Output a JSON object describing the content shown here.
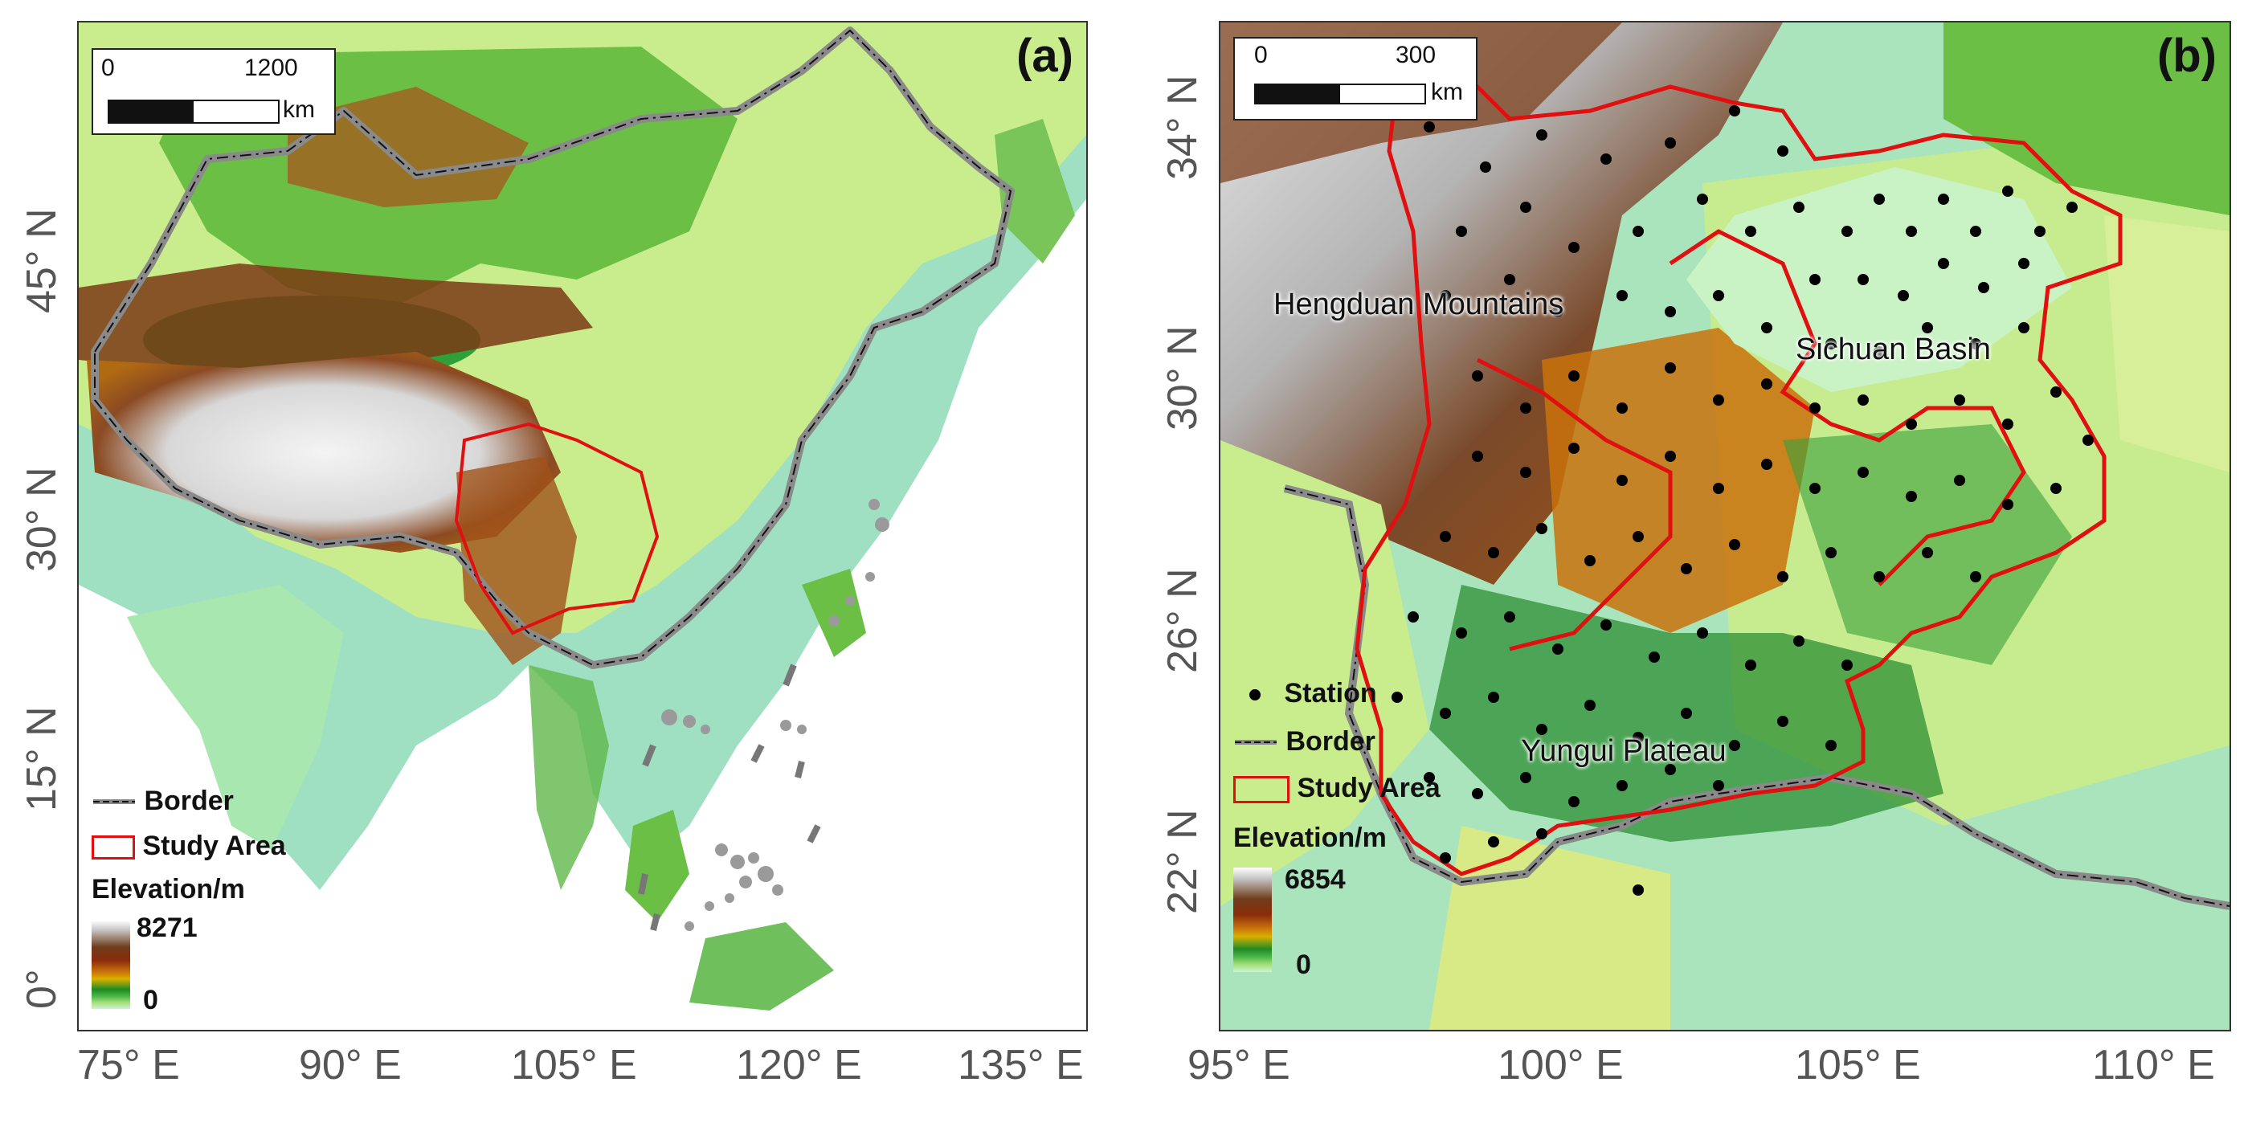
{
  "panel_a": {
    "label": "(a)",
    "scalebar": {
      "start": "0",
      "end": "1200",
      "unit": "km"
    },
    "x_ticks": [
      "75° E",
      "90° E",
      "105° E",
      "120° E",
      "135° E"
    ],
    "y_ticks": [
      "45° N",
      "30° N",
      "15° N",
      "0°"
    ],
    "legend": {
      "border": "Border",
      "study_area": "Study Area",
      "elevation_title": "Elevation/m",
      "elev_max": "8271",
      "elev_min": "0"
    }
  },
  "panel_b": {
    "label": "(b)",
    "scalebar": {
      "start": "0",
      "end": "300",
      "unit": "km"
    },
    "x_ticks": [
      "95° E",
      "100° E",
      "105° E",
      "110° E"
    ],
    "y_ticks": [
      "34° N",
      "30° N",
      "26° N",
      "22° N"
    ],
    "regions": {
      "hengduan": "Hengduan Mountains",
      "sichuan": "Sichuan Basin",
      "yungui": "Yungui Plateau"
    },
    "legend": {
      "station": "Station",
      "border": "Border",
      "study_area": "Study Area",
      "elevation_title": "Elevation/m",
      "elev_max": "6854",
      "elev_min": "0"
    }
  },
  "colors": {
    "study_area": "#e01010",
    "border": "#8a8a8a",
    "station": "#000000",
    "sea": "#ffffff",
    "lowland": "#a9e7c4"
  }
}
